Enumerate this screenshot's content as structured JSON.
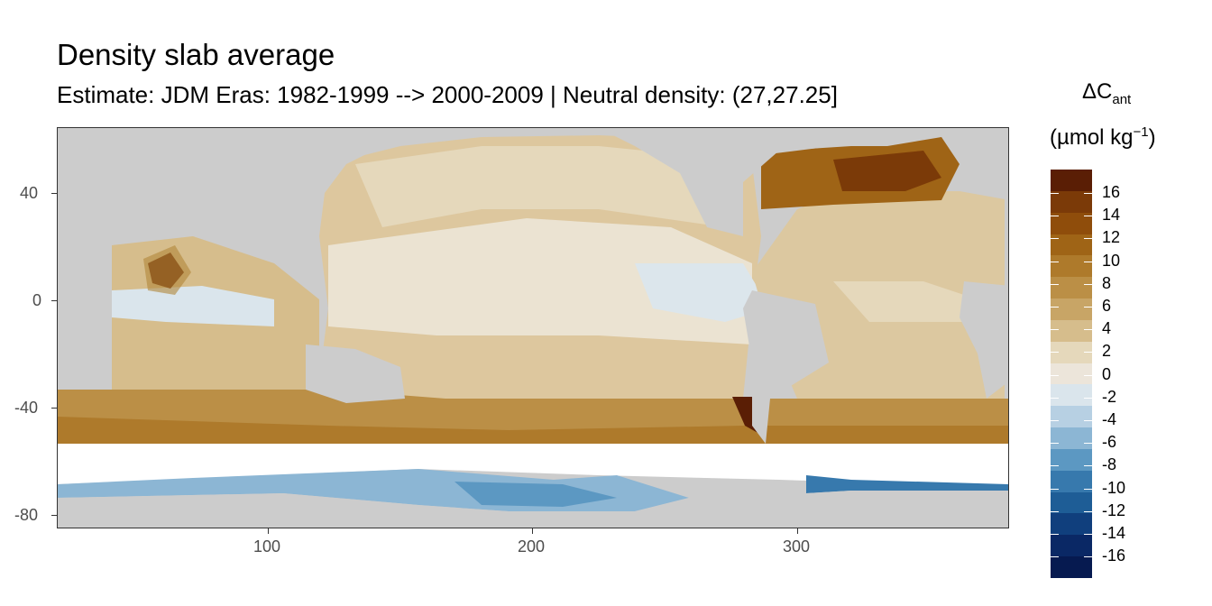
{
  "header": {
    "title": "Density slab average",
    "subtitle": "Estimate: JDM Eras: 1982-1999 --> 2000-2009 | Neutral density: (27,27.25]"
  },
  "legend": {
    "symbol": "ΔC",
    "subscript": "ant",
    "unit_main": "(µmol kg",
    "unit_sup": "−1",
    "unit_close": ")",
    "labels": [
      "16",
      "14",
      "12",
      "10",
      "8",
      "6",
      "4",
      "2",
      "0",
      "-2",
      "-4",
      "-6",
      "-8",
      "-10",
      "-12",
      "-14",
      "-16"
    ],
    "colors": [
      "#5a1e05",
      "#7b3a08",
      "#8f4d0b",
      "#9f6416",
      "#ae7a2b",
      "#bb8f46",
      "#c8a566",
      "#d6bd8c",
      "#e5d8bb",
      "#ece5da",
      "#dae5ec",
      "#b7d0e3",
      "#8cb6d4",
      "#5c98c2",
      "#3779ad",
      "#1e5d96",
      "#103f7d",
      "#0a2865",
      "#061a50"
    ]
  },
  "axes": {
    "x_ticks": [
      {
        "value": 100,
        "label": "100"
      },
      {
        "value": 200,
        "label": "200"
      },
      {
        "value": 300,
        "label": "300"
      }
    ],
    "y_ticks": [
      {
        "value": 40,
        "label": "40"
      },
      {
        "value": 0,
        "label": "0"
      },
      {
        "value": -40,
        "label": "-40"
      },
      {
        "value": -80,
        "label": "-80"
      }
    ],
    "xlim": [
      20,
      380
    ],
    "ylim": [
      -84,
      65
    ]
  },
  "colors": {
    "land": "#cccccc",
    "no_data": "#ffffff",
    "grid": "#ebebeb"
  }
}
